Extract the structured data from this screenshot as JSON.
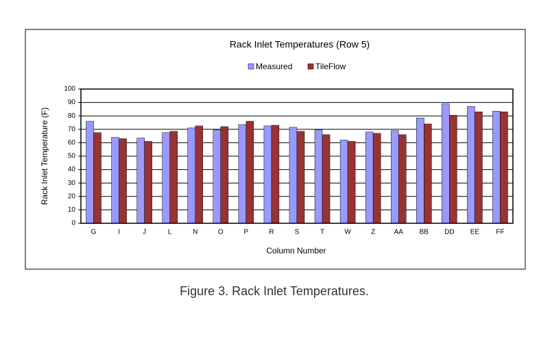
{
  "chart_data": {
    "type": "bar",
    "title": "Rack Inlet Temperatures (Row 5)",
    "x_label": "Column Number",
    "y_label": "Rack Inlet Temperature (F)",
    "caption": "Figure 3. Rack Inlet Temperatures.",
    "categories": [
      "G",
      "I",
      "J",
      "L",
      "N",
      "O",
      "P",
      "R",
      "S",
      "T",
      "W",
      "Z",
      "AA",
      "BB",
      "DD",
      "EE",
      "FF"
    ],
    "series": [
      {
        "name": "Measured",
        "color": "#9999ff",
        "values": [
          76,
          64,
          63.5,
          67.5,
          71,
          69.5,
          73.5,
          72.5,
          71.5,
          69.5,
          62,
          68,
          69,
          78.5,
          89,
          87,
          83.5
        ]
      },
      {
        "name": "TileFlow",
        "color": "#993333",
        "values": [
          67.5,
          63,
          61,
          68.5,
          72.5,
          72,
          76,
          73,
          68.5,
          66,
          61,
          67,
          66,
          74,
          80.5,
          83,
          83
        ]
      }
    ],
    "ylim": [
      0,
      100
    ],
    "yticks": [
      0,
      10,
      20,
      30,
      40,
      50,
      60,
      70,
      80,
      90,
      100
    ],
    "grid": true,
    "legend": "top"
  }
}
